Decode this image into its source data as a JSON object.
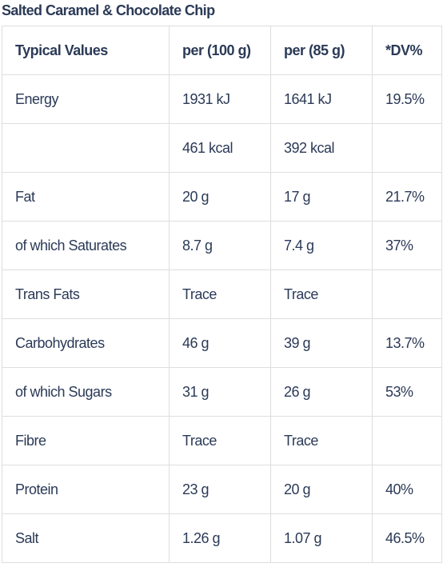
{
  "title": "Salted Caramel & Chocolate Chip",
  "table": {
    "headers": [
      "Typical Values",
      "per (100 g)",
      "per (85 g)",
      "*DV%"
    ],
    "rows": [
      [
        "Energy",
        "1931 kJ",
        "1641 kJ",
        "19.5%"
      ],
      [
        "",
        "461 kcal",
        "392 kcal",
        ""
      ],
      [
        "Fat",
        "20 g",
        "17 g",
        "21.7%"
      ],
      [
        "of which Saturates",
        "8.7 g",
        "7.4 g",
        "37%"
      ],
      [
        "Trans Fats",
        "Trace",
        "Trace",
        ""
      ],
      [
        "Carbohydrates",
        "46 g",
        "39 g",
        "13.7%"
      ],
      [
        "of which Sugars",
        "31 g",
        "26 g",
        "53%"
      ],
      [
        "Fibre",
        "Trace",
        "Trace",
        ""
      ],
      [
        "Protein",
        "23 g",
        "20 g",
        "40%"
      ],
      [
        "Salt",
        "1.26 g",
        "1.07 g",
        "46.5%"
      ]
    ]
  },
  "colors": {
    "text": "#2b3a57",
    "border": "#dedede",
    "background": "#ffffff"
  }
}
